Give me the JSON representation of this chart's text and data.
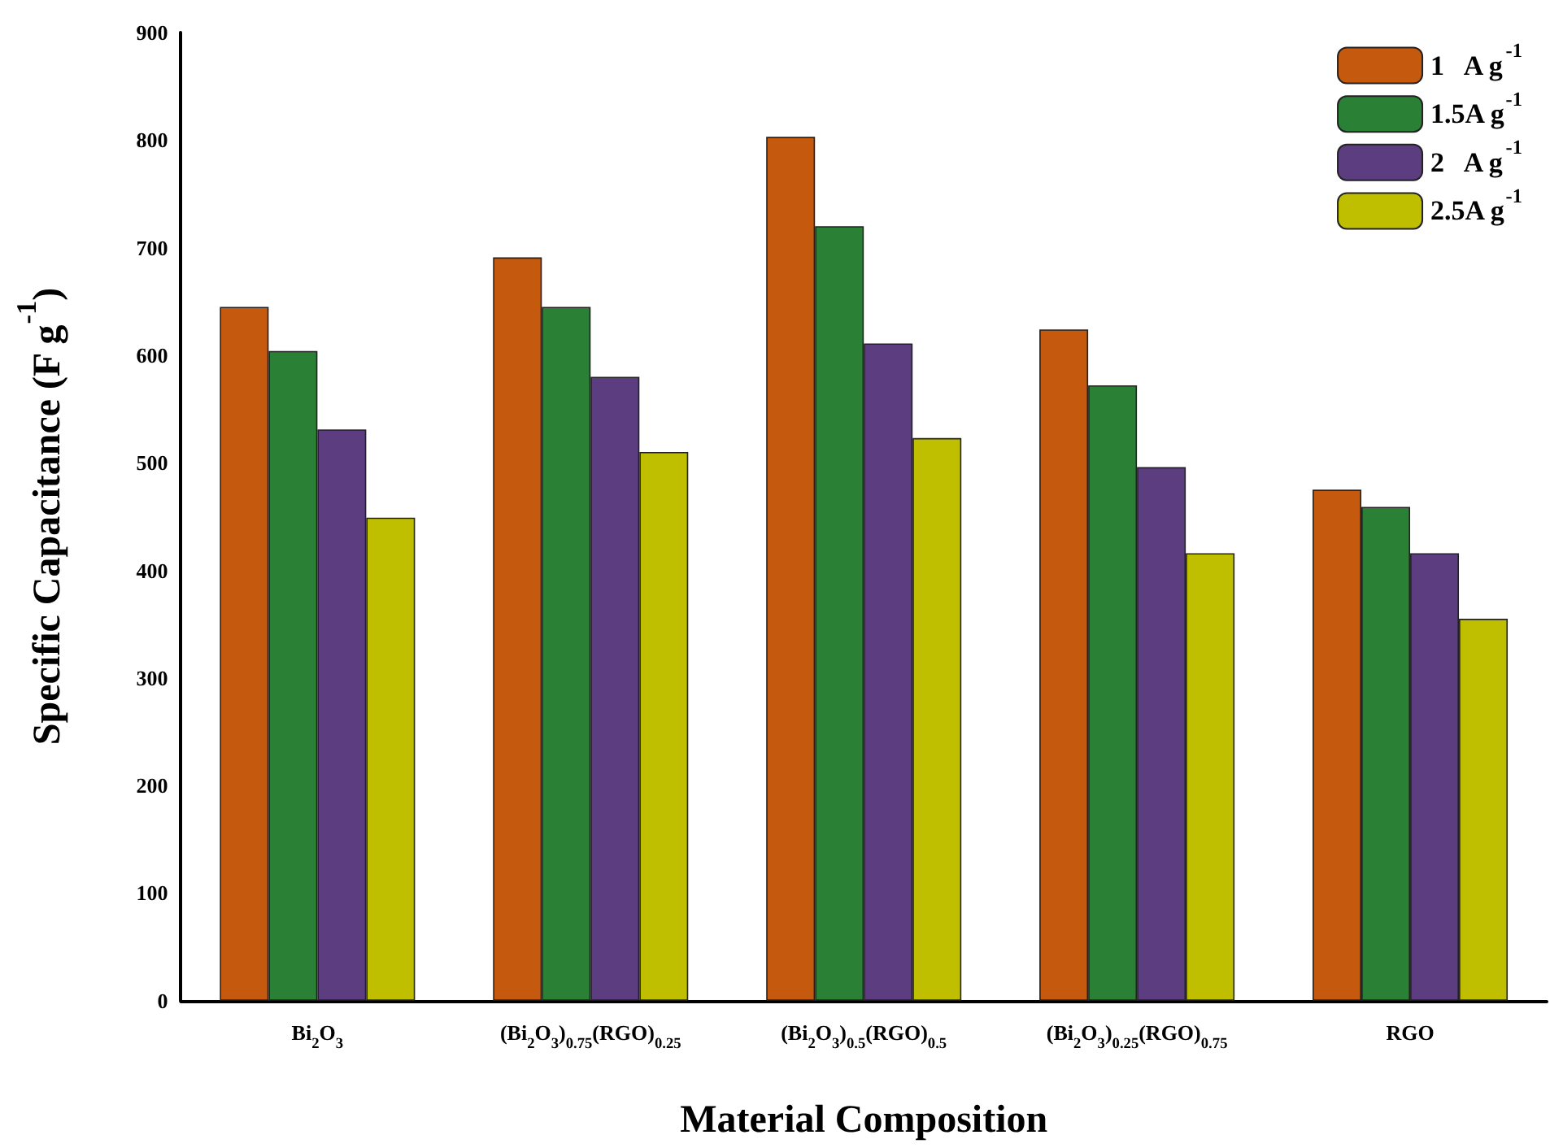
{
  "chart_data": {
    "type": "bar",
    "xlabel": "Material Composition",
    "ylabel": "Specific Capacitance (F g$^{-1}$)",
    "categories": [
      "Bi$_{2}$O$_{3}$",
      "(Bi$_{2}$O$_{3}$)$_{0.75}$(RGO)$_{0.25}$",
      "(Bi$_{2}$O$_{3}$)$_{0.5}$(RGO)$_{0.5}$",
      "(Bi$_{2}$O$_{3}$)$_{0.25}$(RGO)$_{0.75}$",
      "RGO"
    ],
    "series": [
      {
        "name": "1   A g$^{-1}$",
        "color": "#c55a0e",
        "values": [
          645,
          691,
          803,
          624,
          475
        ]
      },
      {
        "name": "1.5A g$^{-1}$",
        "color": "#2a8034",
        "values": [
          604,
          645,
          720,
          572,
          459
        ]
      },
      {
        "name": "2   A g$^{-1}$",
        "color": "#5b3d80",
        "values": [
          531,
          580,
          611,
          496,
          416
        ]
      },
      {
        "name": "2.5A g$^{-1}$",
        "color": "#bfbf00",
        "values": [
          449,
          510,
          523,
          416,
          355
        ]
      }
    ],
    "ylim": [
      0,
      900
    ],
    "yticks": [
      0,
      100,
      200,
      300,
      400,
      500,
      600,
      700,
      800,
      900
    ],
    "grid": false,
    "legend": "top right"
  }
}
